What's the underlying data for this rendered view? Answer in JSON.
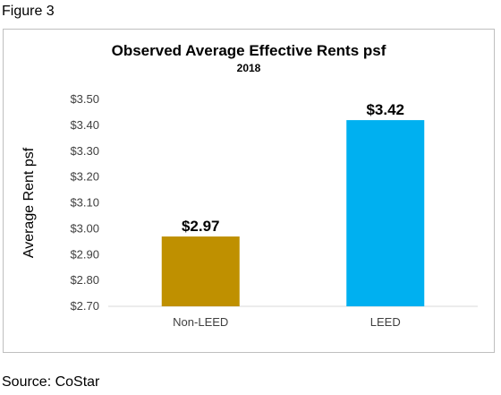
{
  "figure_label": "Figure 3",
  "source": "Source: CoStar",
  "chart_data": {
    "type": "bar",
    "title": "Observed Average Effective Rents psf",
    "subtitle": "2018",
    "xlabel": "",
    "ylabel": "Average Rent psf",
    "categories": [
      "Non-LEED",
      "LEED"
    ],
    "values": [
      2.97,
      3.42
    ],
    "data_labels": [
      "$2.97",
      "$3.42"
    ],
    "bar_colors": [
      "#bf9000",
      "#00b0f0"
    ],
    "ylim": [
      2.7,
      3.5
    ],
    "yticks": [
      2.7,
      2.8,
      2.9,
      3.0,
      3.1,
      3.2,
      3.3,
      3.4,
      3.5
    ],
    "ytick_labels": [
      "$2.70",
      "$2.80",
      "$2.90",
      "$3.00",
      "$3.10",
      "$3.20",
      "$3.30",
      "$3.40",
      "$3.50"
    ],
    "grid": false,
    "legend": "none"
  }
}
